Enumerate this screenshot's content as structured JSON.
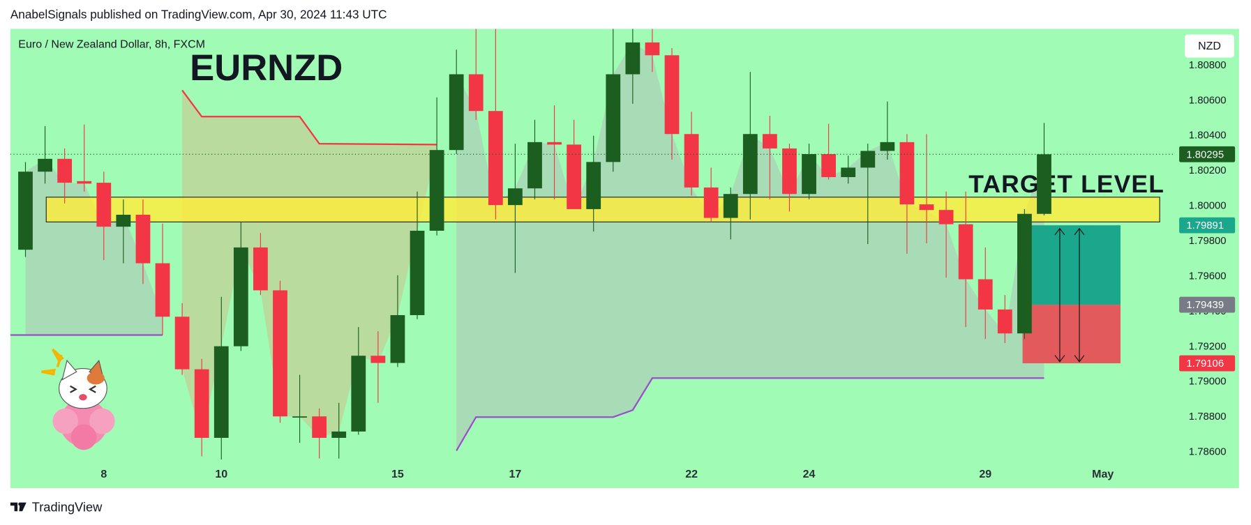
{
  "header": {
    "text": "AnabelSignals published on TradingView.com, Apr 30, 2024 11:43 UTC"
  },
  "footer": {
    "brand": "TradingView"
  },
  "chart_data": {
    "type": "candlestick",
    "title": "EURNZD",
    "subtitle": "Euro / New Zealand Dollar, 8h, FXCM",
    "currency": "NZD",
    "annotation": "TARGET LEVEL",
    "open": [
      1.79752,
      1.80196,
      1.80269,
      1.80142,
      1.80133,
      1.79883,
      1.79951,
      1.79675,
      1.79371,
      1.79072,
      1.78682,
      1.79203,
      1.79765,
      1.79521,
      1.78804,
      1.78804,
      1.78682,
      1.78718,
      1.79149,
      1.79108,
      1.7938,
      1.7986,
      1.80319,
      1.8075,
      1.80541,
      1.80006,
      1.80101,
      1.80364,
      1.8035,
      1.79983,
      1.80251,
      1.8075,
      1.80931,
      1.80858,
      1.8041,
      1.80106,
      1.79933,
      1.80069,
      1.8041,
      1.80328,
      1.80069,
      1.80296,
      1.80165,
      1.80219,
      1.80314,
      1.80364,
      1.8001,
      1.79978,
      1.79897,
      1.79584,
      1.79412,
      1.79276,
      1.79956
    ],
    "high": [
      1.80251,
      1.80455,
      1.80328,
      1.80464,
      1.80196,
      1.80038,
      1.80038,
      1.79901,
      1.79448,
      1.79131,
      1.79484,
      1.7991,
      1.79847,
      1.79575,
      1.7904,
      1.78849,
      1.78881,
      1.79312,
      1.79289,
      1.79607,
      1.80083,
      1.80618,
      1.8089,
      1.81008,
      1.81008,
      1.80355,
      1.80491,
      1.80573,
      1.80491,
      1.804,
      1.81008,
      1.81008,
      1.81008,
      1.80899,
      1.80537,
      1.80219,
      1.80106,
      1.80763,
      1.80514,
      1.80355,
      1.80355,
      1.80468,
      1.80287,
      1.80355,
      1.80595,
      1.8041,
      1.8041,
      1.80083,
      1.80083,
      1.79765,
      1.79494,
      1.79983,
      1.80473
    ],
    "low": [
      1.79711,
      1.80128,
      1.80015,
      1.80083,
      1.79693,
      1.79675,
      1.79557,
      1.79267,
      1.7904,
      1.78577,
      1.78559,
      1.79176,
      1.79494,
      1.78768,
      1.78654,
      1.78564,
      1.78564,
      1.787,
      1.78881,
      1.79085,
      1.79357,
      1.79833,
      1.80296,
      1.80491,
      1.79924,
      1.7962,
      1.80038,
      1.80038,
      1.79983,
      1.79856,
      1.80196,
      1.80582,
      1.80763,
      1.80264,
      1.8006,
      1.7991,
      1.79811,
      1.79924,
      1.80038,
      1.79969,
      1.80038,
      1.80151,
      1.80128,
      1.79784,
      1.80264,
      1.79729,
      1.79788,
      1.79593,
      1.79312,
      1.79244,
      1.79221,
      1.79244,
      1.79947
    ],
    "close": [
      1.80196,
      1.80269,
      1.80133,
      1.80128,
      1.79883,
      1.79951,
      1.79675,
      1.79371,
      1.79072,
      1.78682,
      1.79203,
      1.79765,
      1.79521,
      1.78804,
      1.78804,
      1.78682,
      1.78718,
      1.79149,
      1.79108,
      1.7938,
      1.7986,
      1.80319,
      1.8075,
      1.80541,
      1.80006,
      1.80101,
      1.80364,
      1.8035,
      1.79983,
      1.80251,
      1.8075,
      1.80931,
      1.80858,
      1.8041,
      1.80106,
      1.79933,
      1.80069,
      1.8041,
      1.80328,
      1.80069,
      1.80296,
      1.80165,
      1.80219,
      1.80314,
      1.80364,
      1.8001,
      1.79978,
      1.79897,
      1.79584,
      1.79412,
      1.79276,
      1.79956,
      1.80295
    ],
    "up_color": "#1b5e20",
    "down_color": "#f23645",
    "xlim": [
      -0.77,
      58.57
    ],
    "xticks": [
      {
        "value": 4,
        "label": "8"
      },
      10,
      {
        "value": 19,
        "label": "15"
      },
      {
        "value": 25,
        "label": "17"
      },
      {
        "value": 34,
        "label": "22"
      },
      {
        "value": 40,
        "label": "24"
      },
      {
        "value": 49,
        "label": "29"
      },
      {
        "value": 55,
        "label": "May"
      }
    ],
    "ylim": [
      1.78396,
      1.81008
    ],
    "yticks": [
      {
        "value": 1.786,
        "label": "1.78600"
      },
      {
        "value": 1.788,
        "label": "1.78800"
      },
      {
        "value": 1.79,
        "label": "1.79000"
      },
      {
        "value": 1.792,
        "label": "1.79200"
      },
      {
        "value": 1.794,
        "label": "1.79400"
      },
      {
        "value": 1.796,
        "label": "1.79600"
      },
      {
        "value": 1.798,
        "label": "1.79800"
      },
      {
        "value": 1.8,
        "label": "1.80000"
      },
      {
        "value": 1.802,
        "label": "1.80200"
      },
      {
        "value": 1.804,
        "label": "1.80400"
      },
      {
        "value": 1.806,
        "label": "1.80600"
      },
      {
        "value": 1.808,
        "label": "1.80800"
      }
    ],
    "zone": {
      "from": 1.7991,
      "to": 1.80051,
      "x": [
        1.06,
        57.9
      ],
      "color": "#ffeb3b"
    },
    "lines": [
      {
        "color": "#f23645",
        "x": [
          8,
          9,
          14,
          15,
          21
        ],
        "values": [
          1.80659,
          1.80509,
          1.80509,
          1.80355,
          1.8035
        ],
        "fill": "#b9dc9e"
      },
      {
        "color": "#9c4dcc",
        "x": [
          -1,
          7
        ],
        "values": [
          1.79267,
          1.79267
        ],
        "fill": "#a8dcb6"
      },
      {
        "color": "#9c4dcc",
        "x": [
          22,
          23,
          30,
          31,
          32,
          52
        ],
        "values": [
          1.78609,
          1.788,
          1.788,
          1.7884,
          1.79022,
          1.79022
        ],
        "fill": "#a8dcb6"
      }
    ],
    "position": {
      "x": [
        50.9,
        55.9
      ],
      "target": 1.79891,
      "entry": 1.79439,
      "stop": 1.79106,
      "target_color": "#1aa78b",
      "entry_color": "#787b86",
      "stop_color": "#f23645",
      "loss_color": "#e35a5c"
    }
  }
}
